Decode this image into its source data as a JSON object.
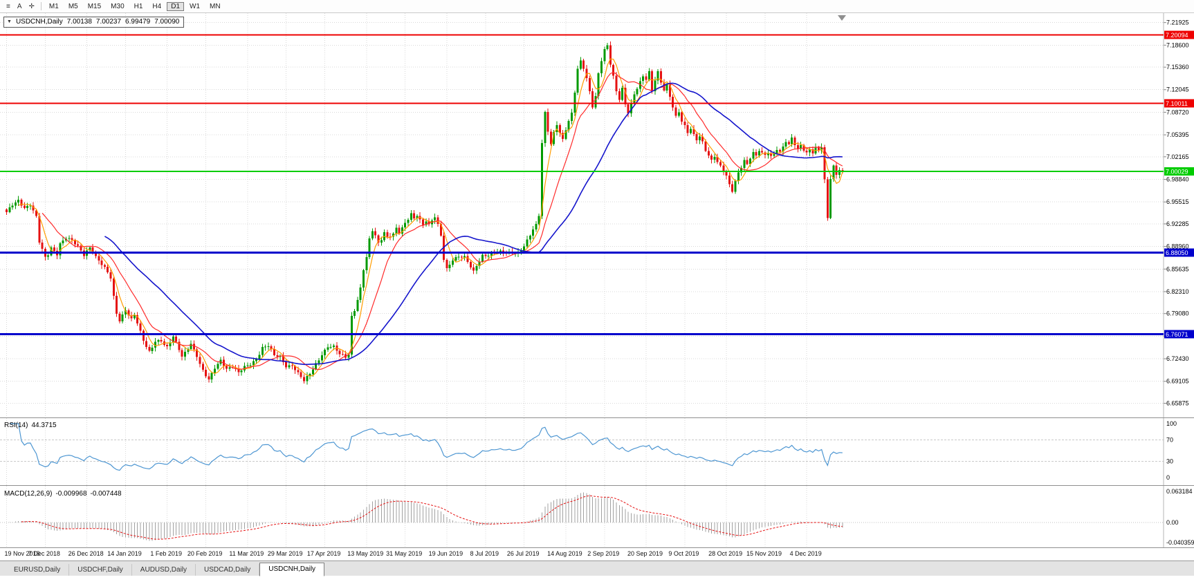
{
  "toolbar": {
    "icons": [
      {
        "name": "menu-icon",
        "glyph": "≡"
      },
      {
        "name": "cursor-a-icon",
        "glyph": "A"
      },
      {
        "name": "crosshair-icon",
        "glyph": "✛"
      }
    ],
    "timeframes": [
      "M1",
      "M5",
      "M15",
      "M30",
      "H1",
      "H4",
      "D1",
      "W1",
      "MN"
    ],
    "active_timeframe": "D1"
  },
  "chart_data": {
    "type": "candlestick",
    "symbol": "USDCNH,Daily",
    "quote": {
      "open": "7.00138",
      "high": "7.00237",
      "low": "6.99479",
      "close": "7.00090"
    },
    "bull_color": "#009a00",
    "bear_color": "#e51212",
    "y_axis": {
      "max": 7.225,
      "min": 6.645,
      "labels": [
        "7.21925",
        "7.18600",
        "7.15360",
        "7.12045",
        "7.08720",
        "7.05395",
        "7.02165",
        "6.98840",
        "6.95515",
        "6.92285",
        "6.88960",
        "6.85635",
        "6.82310",
        "6.79080",
        "6.75755",
        "6.72430",
        "6.69105",
        "6.65875"
      ]
    },
    "x_axis": {
      "labels": [
        {
          "label": "19 Nov 2018",
          "index": 0
        },
        {
          "label": "7 Dec 2018",
          "index": 13
        },
        {
          "label": "26 Dec 2018",
          "index": 27
        },
        {
          "label": "14 Jan 2019",
          "index": 40
        },
        {
          "label": "1 Feb 2019",
          "index": 54
        },
        {
          "label": "20 Feb 2019",
          "index": 67
        },
        {
          "label": "11 Mar 2019",
          "index": 81
        },
        {
          "label": "29 Mar 2019",
          "index": 94
        },
        {
          "label": "17 Apr 2019",
          "index": 107
        },
        {
          "label": "13 May 2019",
          "index": 121
        },
        {
          "label": "31 May 2019",
          "index": 134
        },
        {
          "label": "19 Jun 2019",
          "index": 148
        },
        {
          "label": "8 Jul 2019",
          "index": 161
        },
        {
          "label": "26 Jul 2019",
          "index": 174
        },
        {
          "label": "14 Aug 2019",
          "index": 188
        },
        {
          "label": "2 Sep 2019",
          "index": 201
        },
        {
          "label": "20 Sep 2019",
          "index": 215
        },
        {
          "label": "9 Oct 2019",
          "index": 228
        },
        {
          "label": "28 Oct 2019",
          "index": 242
        },
        {
          "label": "15 Nov 2019",
          "index": 255
        },
        {
          "label": "4 Dec 2019",
          "index": 269
        }
      ]
    },
    "num_candles": 282,
    "close_anchors": [
      [
        0,
        6.938
      ],
      [
        2,
        6.95
      ],
      [
        4,
        6.958
      ],
      [
        6,
        6.948
      ],
      [
        8,
        6.952
      ],
      [
        10,
        6.932
      ],
      [
        11,
        6.895
      ],
      [
        13,
        6.872
      ],
      [
        14,
        6.878
      ],
      [
        15,
        6.888
      ],
      [
        17,
        6.88
      ],
      [
        18,
        6.895
      ],
      [
        20,
        6.902
      ],
      [
        22,
        6.897
      ],
      [
        24,
        6.888
      ],
      [
        26,
        6.878
      ],
      [
        28,
        6.89
      ],
      [
        30,
        6.875
      ],
      [
        32,
        6.862
      ],
      [
        34,
        6.85
      ],
      [
        35,
        6.842
      ],
      [
        36,
        6.815
      ],
      [
        37,
        6.792
      ],
      [
        38,
        6.782
      ],
      [
        40,
        6.798
      ],
      [
        42,
        6.782
      ],
      [
        43,
        6.788
      ],
      [
        44,
        6.775
      ],
      [
        45,
        6.762
      ],
      [
        46,
        6.75
      ],
      [
        47,
        6.742
      ],
      [
        48,
        6.735
      ],
      [
        50,
        6.752
      ],
      [
        52,
        6.752
      ],
      [
        53,
        6.745
      ],
      [
        54,
        6.74
      ],
      [
        56,
        6.755
      ],
      [
        58,
        6.738
      ],
      [
        59,
        6.728
      ],
      [
        61,
        6.742
      ],
      [
        62,
        6.748
      ],
      [
        64,
        6.728
      ],
      [
        65,
        6.715
      ],
      [
        66,
        6.705
      ],
      [
        67,
        6.698
      ],
      [
        68,
        6.692
      ],
      [
        70,
        6.712
      ],
      [
        72,
        6.724
      ],
      [
        74,
        6.71
      ],
      [
        76,
        6.712
      ],
      [
        78,
        6.702
      ],
      [
        80,
        6.712
      ],
      [
        82,
        6.718
      ],
      [
        84,
        6.725
      ],
      [
        86,
        6.74
      ],
      [
        88,
        6.742
      ],
      [
        90,
        6.728
      ],
      [
        92,
        6.728
      ],
      [
        94,
        6.715
      ],
      [
        96,
        6.715
      ],
      [
        98,
        6.702
      ],
      [
        100,
        6.69
      ],
      [
        102,
        6.702
      ],
      [
        104,
        6.718
      ],
      [
        106,
        6.732
      ],
      [
        108,
        6.742
      ],
      [
        110,
        6.74
      ],
      [
        112,
        6.73
      ],
      [
        114,
        6.728
      ],
      [
        115,
        6.732
      ],
      [
        116,
        6.788
      ],
      [
        117,
        6.798
      ],
      [
        118,
        6.812
      ],
      [
        119,
        6.828
      ],
      [
        120,
        6.855
      ],
      [
        121,
        6.872
      ],
      [
        122,
        6.898
      ],
      [
        123,
        6.912
      ],
      [
        124,
        6.905
      ],
      [
        125,
        6.895
      ],
      [
        126,
        6.902
      ],
      [
        127,
        6.912
      ],
      [
        128,
        6.905
      ],
      [
        130,
        6.908
      ],
      [
        131,
        6.915
      ],
      [
        132,
        6.908
      ],
      [
        134,
        6.922
      ],
      [
        136,
        6.938
      ],
      [
        137,
        6.932
      ],
      [
        138,
        6.938
      ],
      [
        140,
        6.922
      ],
      [
        141,
        6.928
      ],
      [
        142,
        6.92
      ],
      [
        144,
        6.932
      ],
      [
        145,
        6.92
      ],
      [
        146,
        6.905
      ],
      [
        147,
        6.872
      ],
      [
        148,
        6.858
      ],
      [
        150,
        6.872
      ],
      [
        152,
        6.875
      ],
      [
        154,
        6.872
      ],
      [
        156,
        6.858
      ],
      [
        157,
        6.852
      ],
      [
        158,
        6.862
      ],
      [
        160,
        6.878
      ],
      [
        162,
        6.878
      ],
      [
        164,
        6.88
      ],
      [
        166,
        6.88
      ],
      [
        168,
        6.88
      ],
      [
        170,
        6.882
      ],
      [
        172,
        6.882
      ],
      [
        174,
        6.89
      ],
      [
        176,
        6.905
      ],
      [
        178,
        6.92
      ],
      [
        179,
        6.935
      ],
      [
        180,
        7.042
      ],
      [
        181,
        7.088
      ],
      [
        182,
        7.062
      ],
      [
        183,
        7.042
      ],
      [
        184,
        7.058
      ],
      [
        185,
        7.07
      ],
      [
        186,
        7.055
      ],
      [
        187,
        7.045
      ],
      [
        188,
        7.06
      ],
      [
        189,
        7.072
      ],
      [
        190,
        7.085
      ],
      [
        191,
        7.118
      ],
      [
        192,
        7.152
      ],
      [
        193,
        7.165
      ],
      [
        194,
        7.155
      ],
      [
        195,
        7.138
      ],
      [
        196,
        7.118
      ],
      [
        197,
        7.095
      ],
      [
        198,
        7.108
      ],
      [
        199,
        7.142
      ],
      [
        200,
        7.162
      ],
      [
        201,
        7.178
      ],
      [
        202,
        7.186
      ],
      [
        203,
        7.16
      ],
      [
        204,
        7.142
      ],
      [
        205,
        7.12
      ],
      [
        206,
        7.108
      ],
      [
        207,
        7.122
      ],
      [
        208,
        7.098
      ],
      [
        209,
        7.085
      ],
      [
        210,
        7.098
      ],
      [
        211,
        7.112
      ],
      [
        212,
        7.122
      ],
      [
        213,
        7.132
      ],
      [
        214,
        7.142
      ],
      [
        215,
        7.138
      ],
      [
        216,
        7.148
      ],
      [
        217,
        7.12
      ],
      [
        218,
        7.135
      ],
      [
        219,
        7.145
      ],
      [
        220,
        7.13
      ],
      [
        221,
        7.118
      ],
      [
        222,
        7.125
      ],
      [
        223,
        7.11
      ],
      [
        224,
        7.095
      ],
      [
        225,
        7.082
      ],
      [
        226,
        7.09
      ],
      [
        227,
        7.076
      ],
      [
        228,
        7.068
      ],
      [
        229,
        7.058
      ],
      [
        230,
        7.062
      ],
      [
        231,
        7.052
      ],
      [
        232,
        7.045
      ],
      [
        233,
        7.05
      ],
      [
        234,
        7.042
      ],
      [
        235,
        7.032
      ],
      [
        236,
        7.025
      ],
      [
        237,
        7.018
      ],
      [
        238,
        7.025
      ],
      [
        239,
        7.015
      ],
      [
        240,
        7.008
      ],
      [
        241,
        7.0
      ],
      [
        242,
        6.992
      ],
      [
        243,
        6.978
      ],
      [
        244,
        6.97
      ],
      [
        245,
        6.985
      ],
      [
        246,
        6.998
      ],
      [
        247,
        7.008
      ],
      [
        248,
        7.018
      ],
      [
        249,
        7.012
      ],
      [
        250,
        7.022
      ],
      [
        251,
        7.028
      ],
      [
        252,
        7.022
      ],
      [
        253,
        7.03
      ],
      [
        254,
        7.025
      ],
      [
        255,
        7.022
      ],
      [
        256,
        7.028
      ],
      [
        257,
        7.022
      ],
      [
        258,
        7.028
      ],
      [
        259,
        7.035
      ],
      [
        260,
        7.03
      ],
      [
        261,
        7.038
      ],
      [
        262,
        7.045
      ],
      [
        263,
        7.038
      ],
      [
        264,
        7.048
      ],
      [
        265,
        7.038
      ],
      [
        266,
        7.03
      ],
      [
        267,
        7.038
      ],
      [
        268,
        7.032
      ],
      [
        269,
        7.028
      ],
      [
        270,
        7.035
      ],
      [
        271,
        7.03
      ],
      [
        272,
        7.036
      ],
      [
        273,
        7.032
      ],
      [
        274,
        7.036
      ],
      [
        275,
        6.985
      ],
      [
        276,
        6.93
      ],
      [
        277,
        6.988
      ],
      [
        278,
        7.006
      ],
      [
        279,
        6.996
      ],
      [
        280,
        7.004
      ],
      [
        281,
        7.001
      ]
    ],
    "moving_averages": [
      {
        "name": "ma-fast-line",
        "period": 5,
        "color": "#ff9c00",
        "width": 1.2
      },
      {
        "name": "ma-mid-line",
        "period": 13,
        "color": "#ff2a2a",
        "width": 1.2
      },
      {
        "name": "ma-slow-line",
        "period": 34,
        "color": "#1414cc",
        "width": 1.6
      }
    ],
    "hlines": [
      {
        "price": 7.20094,
        "label": "7.20094",
        "color": "#ee0000",
        "width": 2
      },
      {
        "price": 7.10011,
        "label": "7.10011",
        "color": "#ee0000",
        "width": 2
      },
      {
        "price": 7.00029,
        "label": "7.00029",
        "color": "#00cc00",
        "width": 2
      },
      {
        "price": 6.8805,
        "label": "6.88050",
        "color": "#0000cc",
        "width": 3
      },
      {
        "price": 6.76071,
        "label": "6.76071",
        "color": "#0000cc",
        "width": 3
      }
    ],
    "indicators": {
      "rsi": {
        "name": "RSI(14)",
        "value": "44.3715",
        "period": 14,
        "levels": [
          100,
          70,
          30,
          0
        ],
        "level_labels": [
          "100",
          "70",
          "30",
          "0"
        ],
        "color": "#4d96d2"
      },
      "macd": {
        "name": "MACD(12,26,9)",
        "values": [
          "-0.009968",
          "-0.007448"
        ],
        "fast": 12,
        "slow": 26,
        "signal": 9,
        "axis_labels": [
          "0.063184",
          "0.00",
          "-0.040359"
        ],
        "max": 0.063184,
        "min": -0.040359,
        "hist_color": "#a0a0a0",
        "signal_color": "#e51212"
      }
    }
  },
  "tabs": {
    "items": [
      "EURUSD,Daily",
      "USDCHF,Daily",
      "AUDUSD,Daily",
      "USDCAD,Daily",
      "USDCNH,Daily"
    ],
    "active": "USDCNH,Daily"
  }
}
